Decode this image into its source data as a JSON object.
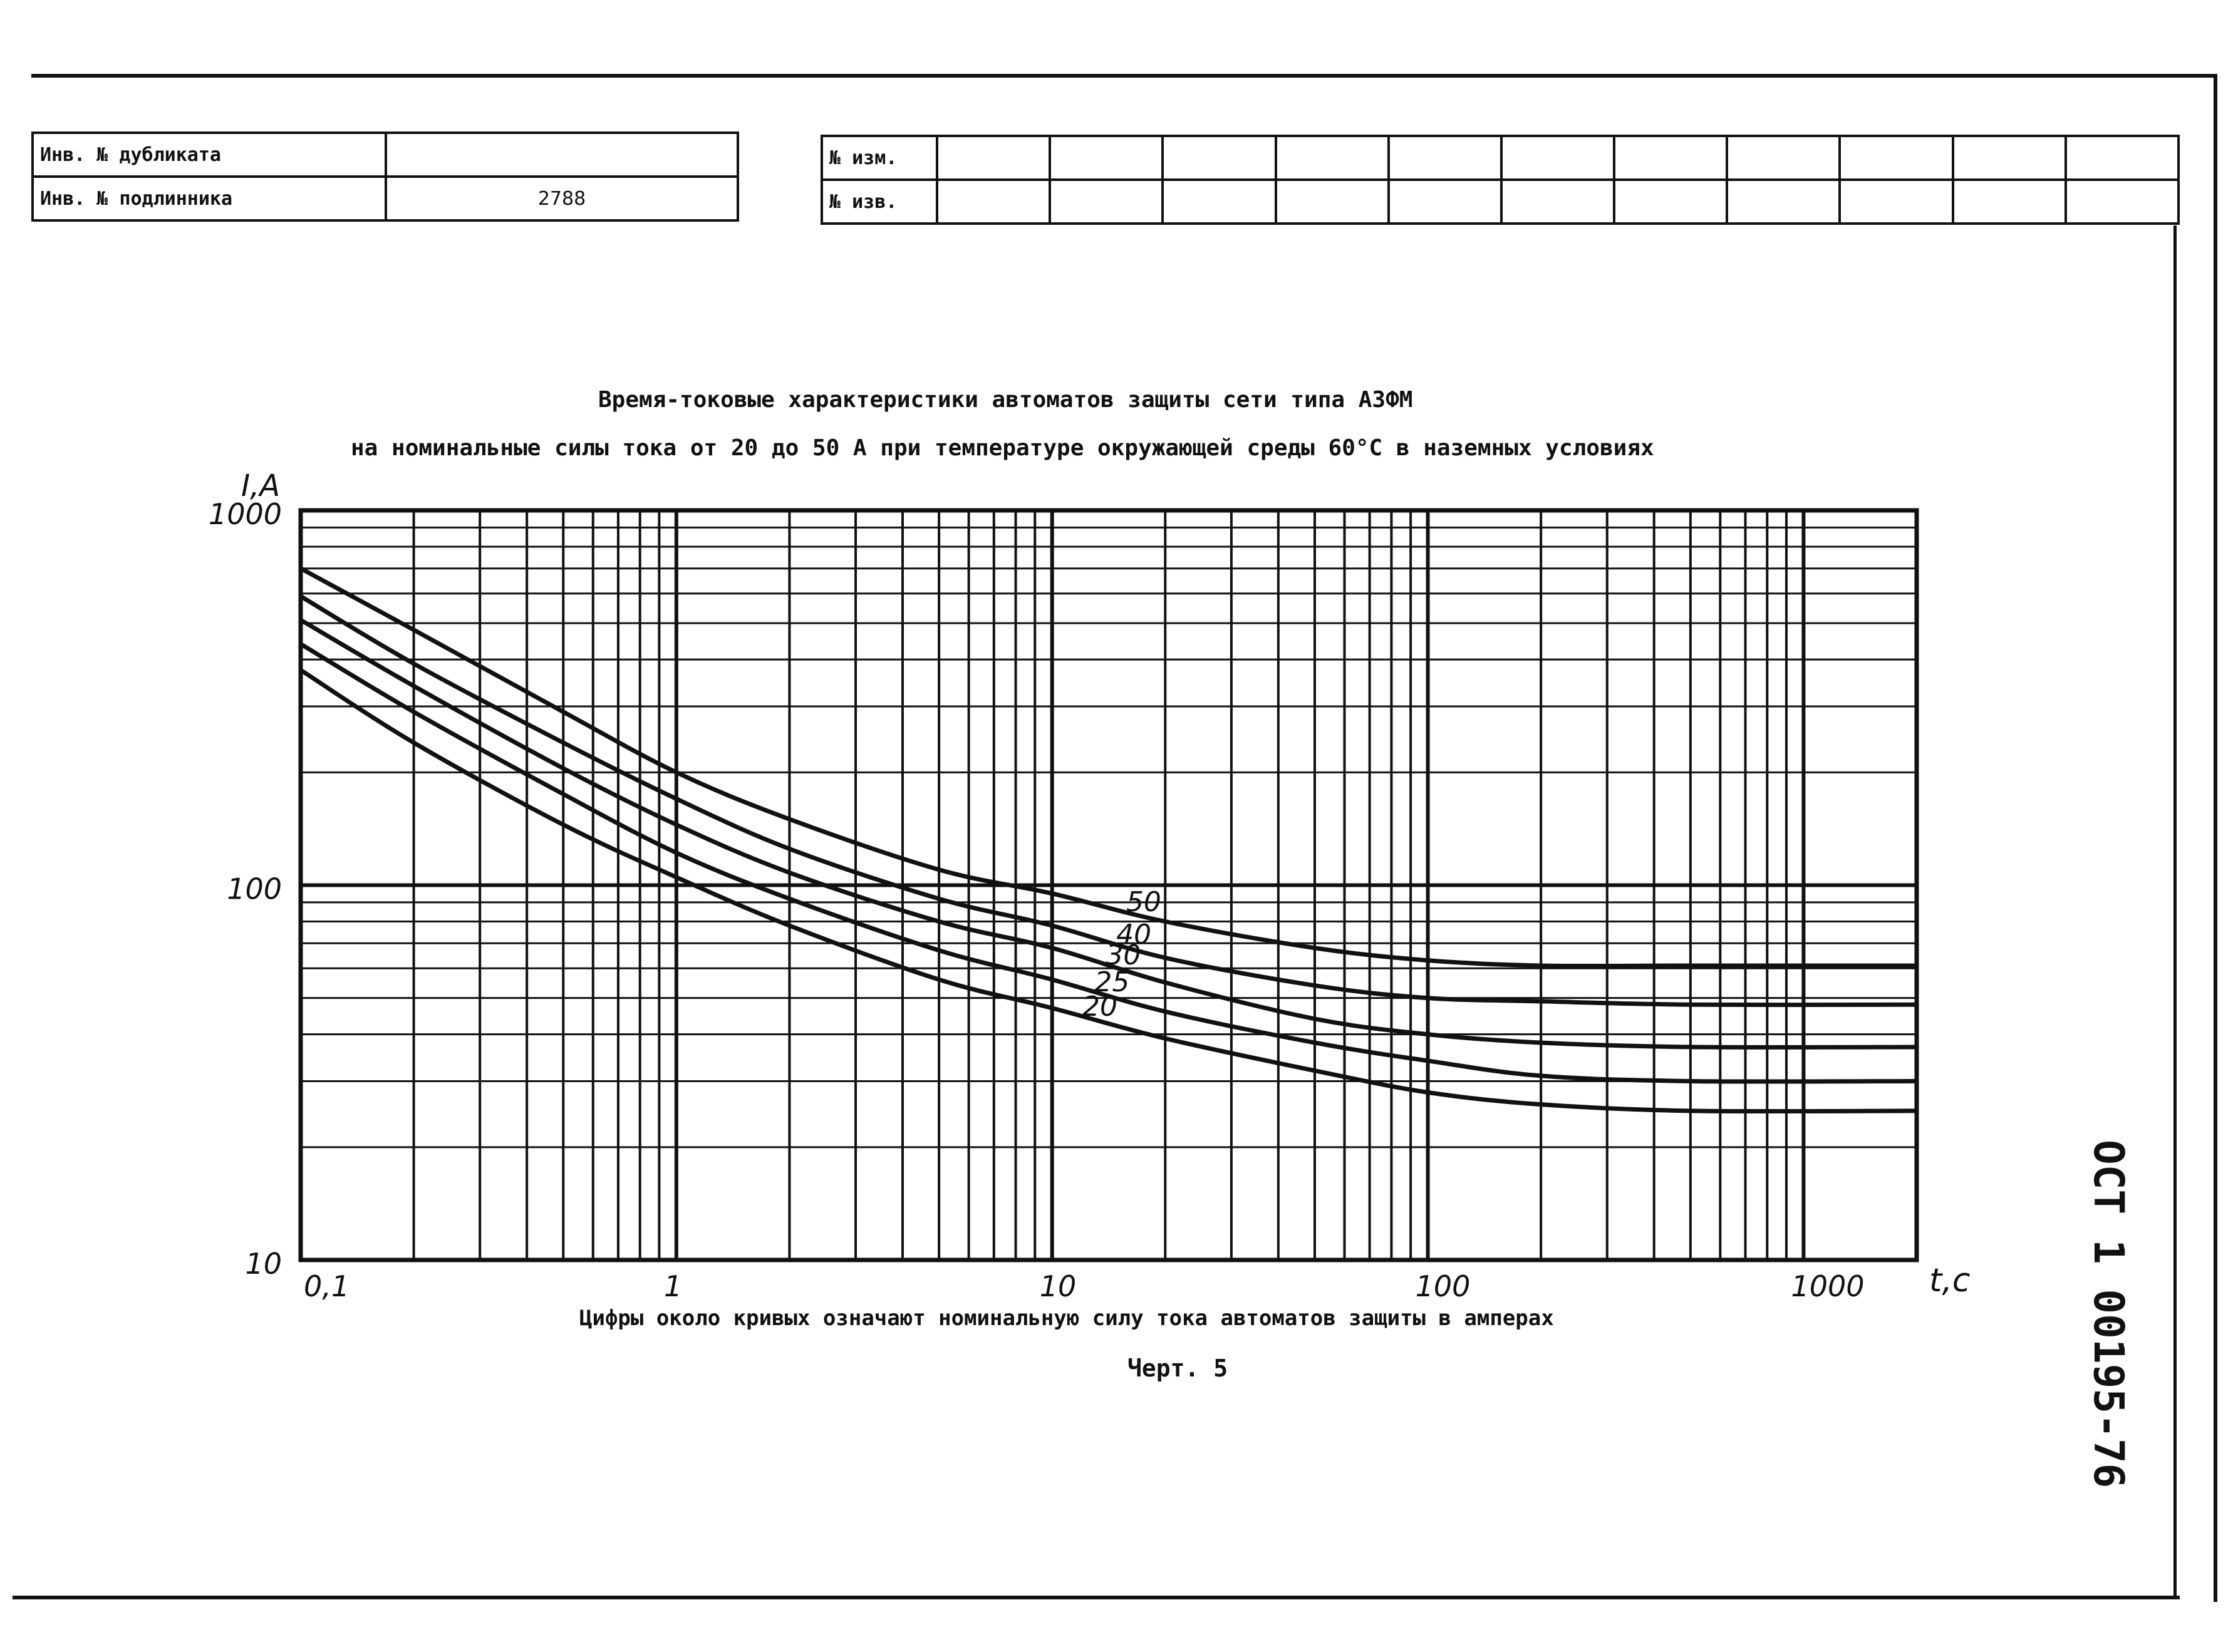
{
  "stamp_left": {
    "rows": [
      {
        "label": "Инв. № дубликата",
        "value": ""
      },
      {
        "label": "Инв. № подлинника",
        "value": "2788"
      }
    ]
  },
  "stamp_right": {
    "rows": [
      {
        "label": "№ изм."
      },
      {
        "label": "№ изв."
      }
    ]
  },
  "document_code": "ОСТ 1 00195-76",
  "caption": "Цифры около кривых означают номинальную силу тока автоматов защиты в амперах",
  "figure_label": "Черт. 5",
  "chart_data": {
    "type": "line",
    "title": "Время-токовые характеристики автоматов защиты сети типа АЗФМ",
    "subtitle": "на номинальные силы тока от 20 до 50 А при температуре окружающей среды 60°С в наземных условиях",
    "xlabel": "t,c",
    "ylabel": "I,A",
    "x_scale": "log",
    "y_scale": "log",
    "xlim": [
      0.1,
      2000
    ],
    "ylim": [
      10,
      1000
    ],
    "x_ticks": [
      "0,1",
      "1",
      "10",
      "100",
      "1000"
    ],
    "y_ticks": [
      "10",
      "100",
      "1000"
    ],
    "grid": true,
    "series": [
      {
        "name": "50",
        "x": [
          0.1,
          0.2,
          0.5,
          1,
          2,
          5,
          10,
          20,
          50,
          100,
          200,
          500,
          2000
        ],
        "y": [
          700,
          480,
          290,
          200,
          150,
          110,
          95,
          80,
          68,
          63,
          61,
          61,
          61
        ]
      },
      {
        "name": "40",
        "x": [
          0.1,
          0.2,
          0.5,
          1,
          2,
          5,
          10,
          20,
          50,
          100,
          200,
          500,
          2000
        ],
        "y": [
          590,
          390,
          240,
          170,
          125,
          92,
          78,
          64,
          54,
          50,
          49,
          48,
          48
        ]
      },
      {
        "name": "30",
        "x": [
          0.1,
          0.2,
          0.5,
          1,
          2,
          5,
          10,
          20,
          50,
          100,
          200,
          500,
          2000
        ],
        "y": [
          510,
          340,
          205,
          145,
          108,
          80,
          68,
          55,
          44,
          40,
          38,
          37,
          37
        ]
      },
      {
        "name": "25",
        "x": [
          0.1,
          0.2,
          0.5,
          1,
          2,
          5,
          10,
          20,
          50,
          100,
          200,
          500,
          2000
        ],
        "y": [
          440,
          290,
          175,
          122,
          92,
          67,
          56,
          46,
          38,
          34,
          31,
          30,
          30
        ]
      },
      {
        "name": "20",
        "x": [
          0.1,
          0.2,
          0.5,
          1,
          2,
          5,
          10,
          20,
          50,
          100,
          200,
          500,
          2000
        ],
        "y": [
          375,
          240,
          145,
          105,
          78,
          56,
          47,
          39,
          32,
          28,
          26,
          25,
          25
        ]
      }
    ]
  }
}
